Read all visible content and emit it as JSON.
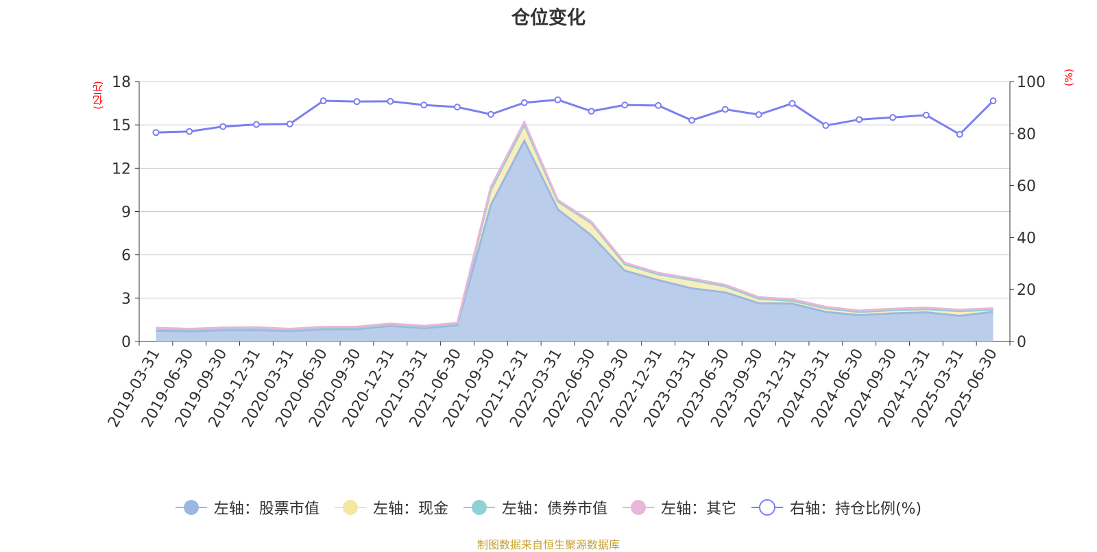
{
  "chart_data": {
    "type": "area",
    "title": "仓位变化",
    "left_axis_unit": "(亿元)",
    "right_axis_unit": "(%)",
    "x": [
      "2019-03-31",
      "2019-06-30",
      "2019-09-30",
      "2019-12-31",
      "2020-03-31",
      "2020-06-30",
      "2020-09-30",
      "2020-12-31",
      "2021-03-31",
      "2021-06-30",
      "2021-09-30",
      "2021-12-31",
      "2022-03-31",
      "2022-06-30",
      "2022-09-30",
      "2022-12-31",
      "2023-03-31",
      "2023-06-30",
      "2023-09-30",
      "2023-12-31",
      "2024-03-31",
      "2024-06-30",
      "2024-09-30",
      "2024-12-31",
      "2025-03-31",
      "2025-06-30"
    ],
    "left_ylim": [
      0,
      18
    ],
    "left_yticks": [
      0,
      3,
      6,
      9,
      12,
      15,
      18
    ],
    "right_ylim": [
      0,
      100
    ],
    "right_yticks": [
      0,
      20,
      40,
      60,
      80,
      100
    ],
    "grid": true,
    "legend_position": "bottom",
    "series": [
      {
        "name": "左轴：股票市值",
        "axis": "left",
        "color": "#9cb8e2",
        "fill": "#b6cbea",
        "values": [
          0.75,
          0.7,
          0.78,
          0.78,
          0.72,
          0.85,
          0.85,
          1.08,
          0.92,
          1.12,
          9.45,
          13.9,
          9.15,
          7.35,
          4.9,
          4.25,
          3.68,
          3.4,
          2.65,
          2.62,
          2.05,
          1.82,
          1.95,
          2.02,
          1.78,
          2.05
        ]
      },
      {
        "name": "左轴：现金",
        "axis": "left",
        "color": "#f5e6a0",
        "fill": "#f9eeb8",
        "values": [
          0.15,
          0.13,
          0.13,
          0.15,
          0.11,
          0.11,
          0.12,
          0.11,
          0.11,
          0.12,
          1.05,
          1.1,
          0.55,
          0.85,
          0.45,
          0.4,
          0.58,
          0.42,
          0.32,
          0.2,
          0.25,
          0.22,
          0.22,
          0.22,
          0.32,
          0.15
        ]
      },
      {
        "name": "左轴：债券市值",
        "axis": "left",
        "color": "#8fd1d6",
        "fill": "#bfe6e8",
        "values": [
          0,
          0,
          0,
          0,
          0,
          0,
          0,
          0,
          0,
          0,
          0,
          0,
          0,
          0,
          0,
          0,
          0,
          0,
          0,
          0,
          0,
          0,
          0,
          0,
          0,
          0
        ]
      },
      {
        "name": "左轴：其它",
        "axis": "left",
        "color": "#e8b6d8",
        "fill": "#f2d3e8",
        "values": [
          0.05,
          0.05,
          0.05,
          0.05,
          0.05,
          0.05,
          0.05,
          0.05,
          0.05,
          0.05,
          0.2,
          0.2,
          0.1,
          0.1,
          0.1,
          0.1,
          0.1,
          0.1,
          0.1,
          0.1,
          0.1,
          0.1,
          0.1,
          0.1,
          0.1,
          0.1
        ]
      },
      {
        "name": "右轴：持仓比例(%)",
        "axis": "right",
        "color": "#7b7ff0",
        "values": [
          80.4,
          80.8,
          82.7,
          83.5,
          83.7,
          92.6,
          92.3,
          92.4,
          91.0,
          90.2,
          87.4,
          91.9,
          93.0,
          88.6,
          91.0,
          90.8,
          85.1,
          89.3,
          87.3,
          91.6,
          83.1,
          85.4,
          86.2,
          87.1,
          79.7,
          92.6
        ]
      }
    ],
    "source_text": "制图数据来自恒生聚源数据库"
  }
}
